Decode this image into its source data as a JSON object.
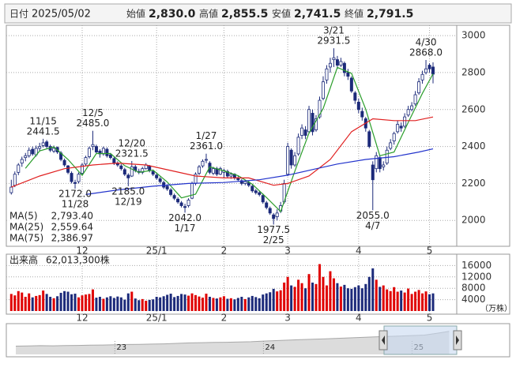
{
  "header": {
    "date_label": "日付",
    "date": "2025/05/02",
    "fields": [
      {
        "label": "始値",
        "value": "2,830.0",
        "color": "#111111"
      },
      {
        "label": "高値",
        "value": "2,855.5",
        "color": "#e00000"
      },
      {
        "label": "安値",
        "value": "2,741.5",
        "color": "#119911"
      },
      {
        "label": "終値",
        "value": "2,791.5",
        "color": "#111111"
      }
    ]
  },
  "chart_data": {
    "type": "candlestick",
    "categories": [
      null,
      null,
      null,
      null,
      null,
      null,
      null,
      null,
      null,
      null,
      null,
      null,
      null,
      null,
      null,
      null,
      null,
      null,
      null,
      null,
      "12",
      null,
      null,
      null,
      null,
      null,
      null,
      null,
      null,
      null,
      null,
      null,
      null,
      null,
      null,
      null,
      null,
      null,
      null,
      null,
      null,
      "25/1",
      null,
      null,
      null,
      null,
      null,
      null,
      null,
      null,
      null,
      null,
      null,
      null,
      null,
      null,
      null,
      null,
      null,
      null,
      "2",
      null,
      null,
      null,
      null,
      null,
      null,
      null,
      null,
      null,
      null,
      null,
      null,
      null,
      null,
      null,
      null,
      null,
      "3",
      null,
      null,
      null,
      null,
      null,
      null,
      null,
      null,
      null,
      null,
      null,
      null,
      null,
      null,
      null,
      null,
      null,
      null,
      null,
      "4",
      null,
      null,
      null,
      null,
      null,
      null,
      null,
      null,
      null,
      null,
      null,
      null,
      null,
      null,
      null,
      null,
      null,
      null,
      null,
      "5",
      null
    ],
    "open": [
      2150,
      2190,
      2260,
      2310,
      2340,
      2350,
      2385,
      2355,
      2390,
      2405,
      2425,
      2400,
      2375,
      2395,
      2365,
      2325,
      2295,
      2255,
      2205,
      2210,
      2255,
      2305,
      2345,
      2400,
      2400,
      2375,
      2360,
      2385,
      2355,
      2335,
      2310,
      2295,
      2275,
      2245,
      2240,
      2290,
      2265,
      2260,
      2280,
      2295,
      2265,
      2245,
      2225,
      2205,
      2185,
      2165,
      2135,
      2115,
      2095,
      2075,
      2080,
      2120,
      2200,
      2255,
      2295,
      2330,
      2310,
      2255,
      2280,
      2250,
      2260,
      2265,
      2240,
      2250,
      2230,
      2215,
      2200,
      2205,
      2185,
      2160,
      2150,
      2135,
      2095,
      2065,
      2030,
      2020,
      2050,
      2100,
      2250,
      2380,
      2300,
      2360,
      2460,
      2490,
      2480,
      2580,
      2490,
      2560,
      2660,
      2760,
      2830,
      2870,
      2870,
      2840,
      2850,
      2800,
      2770,
      2690,
      2640,
      2590,
      2550,
      2480,
      2300,
      2280,
      2340,
      2290,
      2310,
      2390,
      2430,
      2480,
      2510,
      2510,
      2570,
      2600,
      2630,
      2690,
      2760,
      2800,
      2840,
      2830
    ],
    "high": [
      2220,
      2265,
      2310,
      2345,
      2365,
      2395,
      2400,
      2405,
      2420,
      2441.5,
      2435,
      2410,
      2405,
      2400,
      2375,
      2335,
      2300,
      2265,
      2220,
      2260,
      2310,
      2350,
      2400,
      2485,
      2410,
      2385,
      2400,
      2395,
      2365,
      2345,
      2320,
      2305,
      2285,
      2255,
      2321.5,
      2300,
      2280,
      2290,
      2310,
      2300,
      2275,
      2255,
      2235,
      2215,
      2195,
      2175,
      2145,
      2125,
      2105,
      2090,
      2120,
      2210,
      2260,
      2300,
      2330,
      2361,
      2320,
      2290,
      2290,
      2290,
      2280,
      2275,
      2260,
      2255,
      2240,
      2225,
      2220,
      2215,
      2195,
      2170,
      2160,
      2145,
      2105,
      2075,
      2040,
      2060,
      2100,
      2220,
      2420,
      2390,
      2370,
      2470,
      2520,
      2510,
      2620,
      2600,
      2570,
      2670,
      2780,
      2840,
      2880,
      2931.5,
      2890,
      2880,
      2860,
      2820,
      2780,
      2700,
      2660,
      2610,
      2560,
      2490,
      2320,
      2370,
      2350,
      2320,
      2400,
      2440,
      2480,
      2540,
      2530,
      2580,
      2620,
      2640,
      2700,
      2770,
      2810,
      2868,
      2850,
      2855.5
    ],
    "low": [
      2140,
      2180,
      2245,
      2290,
      2320,
      2340,
      2350,
      2345,
      2375,
      2395,
      2390,
      2370,
      2365,
      2360,
      2320,
      2290,
      2250,
      2200,
      2172,
      2200,
      2245,
      2295,
      2335,
      2380,
      2360,
      2340,
      2350,
      2340,
      2330,
      2300,
      2290,
      2270,
      2240,
      2185,
      2235,
      2260,
      2250,
      2250,
      2275,
      2260,
      2240,
      2220,
      2200,
      2170,
      2160,
      2130,
      2110,
      2090,
      2070,
      2042,
      2070,
      2115,
      2190,
      2245,
      2285,
      2310,
      2250,
      2245,
      2240,
      2245,
      2230,
      2230,
      2225,
      2220,
      2210,
      2190,
      2190,
      2180,
      2150,
      2140,
      2130,
      2090,
      2060,
      2030,
      1977.5,
      2000,
      2040,
      2090,
      2240,
      2280,
      2290,
      2350,
      2440,
      2440,
      2470,
      2460,
      2480,
      2550,
      2650,
      2740,
      2800,
      2830,
      2820,
      2830,
      2780,
      2760,
      2690,
      2630,
      2580,
      2540,
      2480,
      2390,
      2055,
      2260,
      2260,
      2270,
      2300,
      2380,
      2410,
      2470,
      2480,
      2500,
      2560,
      2590,
      2620,
      2680,
      2740,
      2790,
      2800,
      2741.5
    ],
    "close": [
      2180,
      2250,
      2300,
      2330,
      2350,
      2380,
      2360,
      2390,
      2400,
      2420,
      2400,
      2380,
      2390,
      2370,
      2330,
      2300,
      2260,
      2210,
      2200,
      2250,
      2300,
      2340,
      2390,
      2410,
      2370,
      2360,
      2390,
      2350,
      2340,
      2310,
      2300,
      2280,
      2250,
      2230,
      2290,
      2270,
      2260,
      2280,
      2300,
      2270,
      2250,
      2230,
      2210,
      2180,
      2170,
      2140,
      2120,
      2100,
      2080,
      2070,
      2110,
      2200,
      2250,
      2290,
      2320,
      2330,
      2260,
      2280,
      2250,
      2280,
      2270,
      2240,
      2250,
      2230,
      2220,
      2200,
      2210,
      2190,
      2160,
      2150,
      2140,
      2100,
      2070,
      2040,
      2010,
      2040,
      2080,
      2200,
      2400,
      2300,
      2350,
      2450,
      2500,
      2460,
      2600,
      2480,
      2550,
      2650,
      2750,
      2820,
      2850,
      2880,
      2840,
      2860,
      2800,
      2780,
      2700,
      2650,
      2600,
      2560,
      2500,
      2400,
      2220,
      2350,
      2280,
      2300,
      2380,
      2420,
      2470,
      2520,
      2500,
      2560,
      2600,
      2620,
      2680,
      2750,
      2790,
      2820,
      2820,
      2791.5
    ],
    "up_color": "#ffffff",
    "down_color": "#1c2a7a",
    "outline_color": "#1c2a7a",
    "ylim": [
      1860,
      3056
    ],
    "yticks": [
      2000,
      2200,
      2400,
      2600,
      2800,
      3000
    ],
    "grid": true,
    "legend": "bottom-left",
    "series": [
      {
        "name": "MA(5)",
        "color": "#2a9d2a",
        "x": [
          4,
          8,
          12,
          16,
          20,
          24,
          28,
          32,
          36,
          40,
          44,
          48,
          52,
          56,
          60,
          64,
          68,
          72,
          76,
          80,
          84,
          88,
          92,
          96,
          100,
          104,
          108,
          112,
          116,
          119
        ],
        "values": [
          2282,
          2376,
          2398,
          2330,
          2244,
          2362,
          2362,
          2296,
          2260,
          2272,
          2208,
          2122,
          2142,
          2290,
          2268,
          2242,
          2196,
          2124,
          2048,
          2266,
          2472,
          2606,
          2828,
          2796,
          2602,
          2350,
          2370,
          2530,
          2688,
          2793.4
        ],
        "value_labels": [
          null,
          null,
          null,
          null,
          null,
          null,
          null,
          null,
          null,
          null,
          null,
          null,
          null,
          null,
          null,
          null,
          null,
          null,
          null,
          null,
          null,
          null,
          null,
          null,
          null,
          null,
          null,
          null,
          null,
          "2,793.40"
        ]
      },
      {
        "name": "MA(25)",
        "color": "#e02020",
        "x": [
          0,
          8,
          15,
          23,
          30,
          38,
          45,
          52,
          60,
          67,
          74,
          78,
          84,
          90,
          96,
          102,
          108,
          114,
          119
        ],
        "values": [
          2180,
          2240,
          2280,
          2300,
          2310,
          2300,
          2270,
          2240,
          2230,
          2230,
          2190,
          2200,
          2240,
          2330,
          2480,
          2550,
          2540,
          2540,
          2559.64
        ],
        "value_labels": [
          null,
          null,
          null,
          null,
          null,
          null,
          null,
          null,
          null,
          null,
          null,
          null,
          null,
          null,
          null,
          null,
          null,
          null,
          "2,559.64"
        ]
      },
      {
        "name": "MA(75)",
        "color": "#2233cc",
        "x": [
          21,
          30,
          40,
          50,
          60,
          70,
          78,
          85,
          92,
          100,
          108,
          115,
          119
        ],
        "values": [
          2140,
          2165,
          2185,
          2200,
          2205,
          2220,
          2245,
          2275,
          2305,
          2330,
          2345,
          2370,
          2386.97
        ],
        "value_labels": [
          null,
          null,
          null,
          null,
          null,
          null,
          null,
          null,
          null,
          null,
          null,
          null,
          "2,386.97"
        ]
      }
    ],
    "annotations": [
      {
        "date": "11/15",
        "value": 2441.5,
        "label": "2441.5"
      },
      {
        "date": "11/28",
        "value": 2172,
        "label": "2172.0"
      },
      {
        "date": "12/5",
        "value": 2485,
        "label": "2485.0"
      },
      {
        "date": "12/19",
        "value": 2185,
        "label": "2185.0"
      },
      {
        "date": "12/20",
        "value": 2321.5,
        "label": "2321.5"
      },
      {
        "date": "1/17",
        "value": 2042,
        "label": "2042.0"
      },
      {
        "date": "1/27",
        "value": 2361,
        "label": "2361.0"
      },
      {
        "date": "2/25",
        "value": 1977.5,
        "label": "1977.5"
      },
      {
        "date": "3/21",
        "value": 2931.5,
        "label": "2931.5"
      },
      {
        "date": "4/7",
        "value": 2055,
        "label": "2055.0"
      },
      {
        "date": "4/30",
        "value": 2868,
        "label": "2868.0"
      }
    ],
    "volume": {
      "type": "bar",
      "name": "出来高",
      "unit_label": "（万株）",
      "up_color": "#e00000",
      "down_color": "#1c2a7a",
      "ylim": [
        0,
        20000
      ],
      "yticks": [
        4000,
        8000,
        12000,
        16000
      ],
      "grid": true,
      "values": [
        6000,
        5500,
        7000,
        6500,
        5000,
        6200,
        4800,
        5300,
        5600,
        7200,
        6000,
        5000,
        4500,
        5200,
        6400,
        7000,
        6800,
        5900,
        6100,
        4800,
        5500,
        5800,
        6000,
        7600,
        4700,
        5000,
        4300,
        4800,
        5200,
        4600,
        5100,
        4800,
        4000,
        6200,
        6800,
        4400,
        3800,
        4200,
        3600,
        3900,
        4100,
        5000,
        4800,
        5200,
        5700,
        6100,
        4900,
        5300,
        6000,
        5800,
        5400,
        6200,
        5600,
        5100,
        4700,
        6100,
        5000,
        4600,
        4400,
        4800,
        5200,
        4300,
        4500,
        4100,
        4600,
        5000,
        4200,
        4800,
        5300,
        4900,
        4500,
        5800,
        6200,
        6600,
        7800,
        6900,
        7300,
        10000,
        12000,
        9000,
        8500,
        11000,
        9800,
        8000,
        13000,
        10000,
        9500,
        16500,
        12000,
        9000,
        14000,
        11500,
        9800,
        8600,
        9200,
        8000,
        7800,
        8400,
        9000,
        8000,
        9500,
        12000,
        15000,
        11000,
        8500,
        9000,
        7600,
        7000,
        8400,
        6800,
        7200,
        6500,
        7900,
        6000,
        6800,
        7400,
        6200,
        6900,
        5900,
        6201.33
      ],
      "value_labels": [
        null,
        null,
        null,
        null,
        null,
        null,
        null,
        null,
        null,
        null,
        null,
        null,
        null,
        null,
        null,
        null,
        null,
        null,
        null,
        null,
        null,
        null,
        null,
        null,
        null,
        null,
        null,
        null,
        null,
        null,
        null,
        null,
        null,
        null,
        null,
        null,
        null,
        null,
        null,
        null,
        null,
        null,
        null,
        null,
        null,
        null,
        null,
        null,
        null,
        null,
        null,
        null,
        null,
        null,
        null,
        null,
        null,
        null,
        null,
        null,
        null,
        null,
        null,
        null,
        null,
        null,
        null,
        null,
        null,
        null,
        null,
        null,
        null,
        null,
        null,
        null,
        null,
        null,
        null,
        null,
        null,
        null,
        null,
        null,
        null,
        null,
        null,
        null,
        null,
        null,
        null,
        null,
        null,
        null,
        null,
        null,
        null,
        null,
        null,
        null,
        null,
        null,
        null,
        null,
        null,
        null,
        null,
        null,
        null,
        null,
        null,
        null,
        null,
        null,
        null,
        null,
        null,
        null,
        null,
        "62,013,300株"
      ]
    },
    "navigator": {
      "type": "area",
      "color": "#a8a8a8",
      "ylim": [
        0,
        3000
      ],
      "categories": [
        null,
        null,
        null,
        null,
        null,
        null,
        null,
        null,
        "23",
        null,
        null,
        null,
        null,
        null,
        null,
        null,
        null,
        null,
        null,
        null,
        "24",
        null,
        null,
        null,
        null,
        null,
        null,
        null,
        null,
        null,
        null,
        null,
        "25",
        null,
        null,
        null
      ],
      "values": [
        900,
        920,
        950,
        930,
        960,
        980,
        1000,
        1020,
        1050,
        1080,
        1100,
        1120,
        1150,
        1200,
        1250,
        1280,
        1300,
        1320,
        1350,
        1380,
        1450,
        1500,
        1550,
        1600,
        1650,
        1700,
        1750,
        1800,
        1850,
        1900,
        1950,
        2000,
        2050,
        2100,
        2300,
        2500
      ]
    }
  }
}
